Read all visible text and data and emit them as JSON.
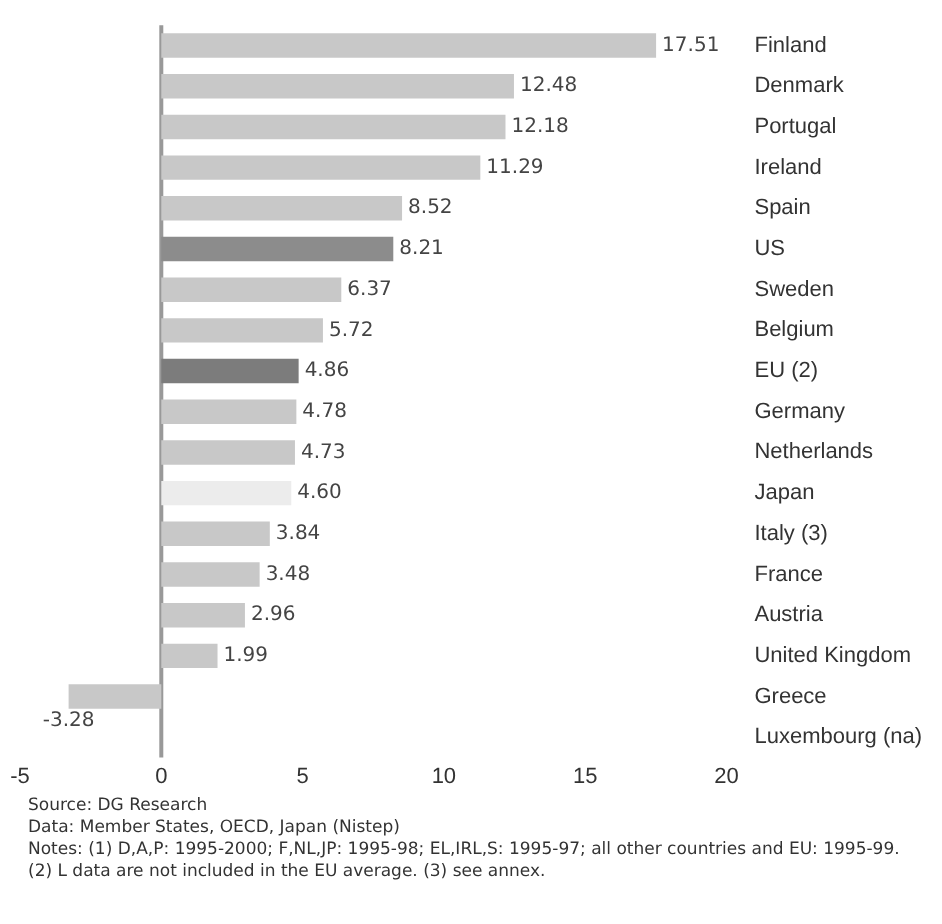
{
  "chart_data": {
    "type": "bar",
    "orientation": "horizontal",
    "categories": [
      "Finland",
      "Denmark",
      "Portugal",
      "Ireland",
      "Spain",
      "US",
      "Sweden",
      "Belgium",
      "EU (2)",
      "Germany",
      "Netherlands",
      "Japan",
      "Italy (3)",
      "France",
      "Austria",
      "United Kingdom",
      "Greece",
      "Luxembourg (na)"
    ],
    "values": [
      17.51,
      12.48,
      12.18,
      11.29,
      8.52,
      8.21,
      6.37,
      5.72,
      4.86,
      4.78,
      4.73,
      4.6,
      3.84,
      3.48,
      2.96,
      1.99,
      -3.28,
      null
    ],
    "value_labels": [
      "17.51",
      "12.48",
      "12.18",
      "11.29",
      "8.52",
      "8.21",
      "6.37",
      "5.72",
      "4.86",
      "4.78",
      "4.73",
      "4.60",
      "3.84",
      "3.48",
      "2.96",
      "1.99",
      "-3.28",
      null
    ],
    "colors": [
      "#c8c8c8",
      "#c8c8c8",
      "#c8c8c8",
      "#c8c8c8",
      "#c8c8c8",
      "#8c8c8c",
      "#c8c8c8",
      "#c8c8c8",
      "#7c7c7c",
      "#c8c8c8",
      "#c8c8c8",
      "#ececec",
      "#c8c8c8",
      "#c8c8c8",
      "#c8c8c8",
      "#c8c8c8",
      "#c8c8c8",
      "#c8c8c8"
    ],
    "xlim": [
      -5,
      20
    ],
    "xticks": [
      -5,
      0,
      5,
      10,
      15,
      20
    ],
    "grid": false,
    "legend": false,
    "ref_lines": [
      {
        "axis": "x",
        "value": 0,
        "color": "#999999"
      }
    ],
    "annotations": [
      "Source: DG Research",
      "Data: Member States, OECD, Japan (Nistep)",
      "Notes: (1) D,A,P: 1995-2000; F,NL,JP: 1995-98; EL,IRL,S: 1995-97; all other countries and EU: 1995-99.",
      "(2) L data are not included in the EU average. (3) see annex."
    ]
  }
}
